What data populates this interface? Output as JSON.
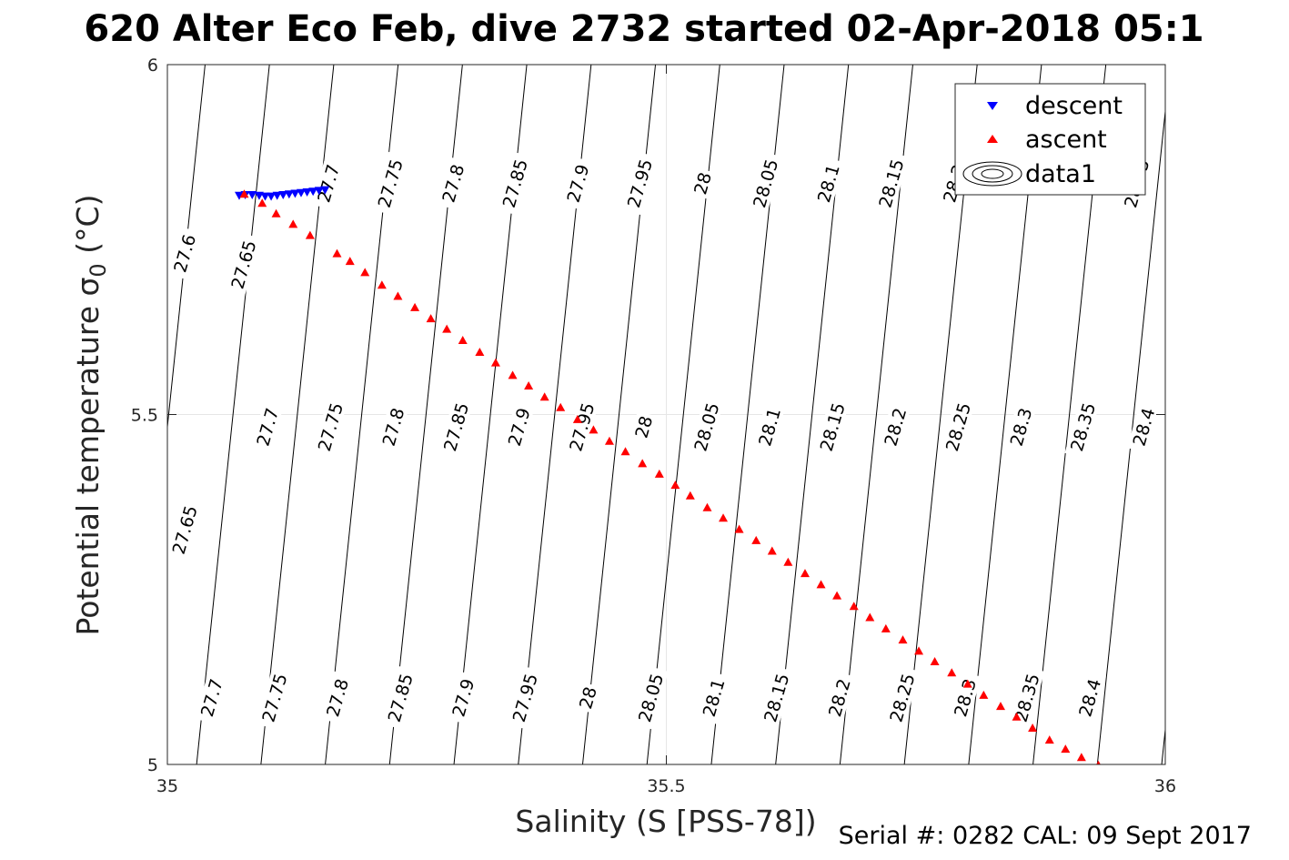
{
  "chart_data": {
    "type": "scatter",
    "title": "620 Alter Eco Feb, dive 2732 started 02-Apr-2018 05:1",
    "xlabel": "Salinity (S [PSS-78])",
    "ylabel": "Potential temperature σ",
    "ylabel_sub": "0",
    "ylabel_unit": " (°C)",
    "xlim": [
      35,
      36
    ],
    "ylim": [
      5,
      6
    ],
    "x_ticks": [
      {
        "value": 35,
        "label": "35"
      },
      {
        "value": 35.5,
        "label": "35.5"
      },
      {
        "value": 36,
        "label": "36"
      }
    ],
    "y_ticks": [
      {
        "value": 5,
        "label": "5"
      },
      {
        "value": 5.5,
        "label": "5.5"
      },
      {
        "value": 6,
        "label": "6"
      }
    ],
    "grid": true,
    "legend_position": "top-right",
    "colors": {
      "descent": "#0000ff",
      "ascent": "#ff0000",
      "contour": "#000000",
      "grid": "#e6e6e6"
    },
    "series": [
      {
        "name": "descent",
        "marker": "triangle-down",
        "color": "#0000ff",
        "points": [
          [
            35.072,
            5.813
          ],
          [
            35.078,
            5.814
          ],
          [
            35.085,
            5.814
          ],
          [
            35.092,
            5.813
          ],
          [
            35.098,
            5.812
          ],
          [
            35.104,
            5.812
          ],
          [
            35.11,
            5.813
          ],
          [
            35.116,
            5.814
          ],
          [
            35.122,
            5.815
          ],
          [
            35.128,
            5.816
          ],
          [
            35.134,
            5.817
          ],
          [
            35.14,
            5.818
          ],
          [
            35.146,
            5.819
          ],
          [
            35.152,
            5.82
          ],
          [
            35.158,
            5.821
          ]
        ]
      },
      {
        "name": "ascent",
        "marker": "triangle-up",
        "color": "#ff0000",
        "points": [
          [
            35.077,
            5.815
          ],
          [
            35.095,
            5.802
          ],
          [
            35.109,
            5.787
          ],
          [
            35.126,
            5.772
          ],
          [
            35.143,
            5.756
          ],
          [
            35.17,
            5.73
          ],
          [
            35.183,
            5.719
          ],
          [
            35.198,
            5.703
          ],
          [
            35.215,
            5.685
          ],
          [
            35.231,
            5.669
          ],
          [
            35.248,
            5.653
          ],
          [
            35.264,
            5.637
          ],
          [
            35.28,
            5.622
          ],
          [
            35.296,
            5.606
          ],
          [
            35.313,
            5.589
          ],
          [
            35.329,
            5.574
          ],
          [
            35.346,
            5.556
          ],
          [
            35.362,
            5.541
          ],
          [
            35.378,
            5.525
          ],
          [
            35.394,
            5.51
          ],
          [
            35.411,
            5.493
          ],
          [
            35.427,
            5.478
          ],
          [
            35.443,
            5.462
          ],
          [
            35.459,
            5.447
          ],
          [
            35.476,
            5.43
          ],
          [
            35.493,
            5.415
          ],
          [
            35.509,
            5.399
          ],
          [
            35.524,
            5.384
          ],
          [
            35.541,
            5.367
          ],
          [
            35.557,
            5.352
          ],
          [
            35.573,
            5.336
          ],
          [
            35.59,
            5.32
          ],
          [
            35.606,
            5.305
          ],
          [
            35.622,
            5.289
          ],
          [
            35.639,
            5.273
          ],
          [
            35.655,
            5.257
          ],
          [
            35.671,
            5.241
          ],
          [
            35.688,
            5.226
          ],
          [
            35.704,
            5.21
          ],
          [
            35.72,
            5.194
          ],
          [
            35.737,
            5.178
          ],
          [
            35.753,
            5.162
          ],
          [
            35.769,
            5.147
          ],
          [
            35.786,
            5.131
          ],
          [
            35.802,
            5.115
          ],
          [
            35.818,
            5.099
          ],
          [
            35.835,
            5.083
          ],
          [
            35.851,
            5.068
          ],
          [
            35.867,
            5.052
          ],
          [
            35.884,
            5.035
          ],
          [
            35.9,
            5.022
          ],
          [
            35.916,
            5.01
          ],
          [
            35.933,
            4.999
          ]
        ]
      },
      {
        "name": "data1",
        "marker": "contour",
        "color": "#000000",
        "isopycnals": [
          "27.6",
          "27.65",
          "27.7",
          "27.75",
          "27.8",
          "27.85",
          "27.9",
          "27.95",
          "28",
          "28.05",
          "28.1",
          "28.15",
          "28.2",
          "28.25",
          "28.3",
          "28.35",
          "28.4"
        ]
      }
    ],
    "contour_labels": [
      {
        "text": "27.6",
        "x": 35.018,
        "y": 5.73
      },
      {
        "text": "27.65",
        "x": 35.077,
        "y": 5.714
      },
      {
        "text": "27.7",
        "x": 35.162,
        "y": 5.83
      },
      {
        "text": "27.75",
        "x": 35.224,
        "y": 5.83
      },
      {
        "text": "27.8",
        "x": 35.287,
        "y": 5.83
      },
      {
        "text": "27.85",
        "x": 35.349,
        "y": 5.83
      },
      {
        "text": "27.9",
        "x": 35.412,
        "y": 5.83
      },
      {
        "text": "27.95",
        "x": 35.474,
        "y": 5.83
      },
      {
        "text": "28",
        "x": 35.537,
        "y": 5.83
      },
      {
        "text": "28.05",
        "x": 35.6,
        "y": 5.83
      },
      {
        "text": "28.1",
        "x": 35.663,
        "y": 5.83
      },
      {
        "text": "28.15",
        "x": 35.726,
        "y": 5.83
      },
      {
        "text": "28.2",
        "x": 35.789,
        "y": 5.83
      },
      {
        "text": "28.35",
        "x": 35.972,
        "y": 5.83
      },
      {
        "text": "27.7",
        "x": 35.101,
        "y": 5.482
      },
      {
        "text": "27.75",
        "x": 35.164,
        "y": 5.482
      },
      {
        "text": "27.8",
        "x": 35.227,
        "y": 5.482
      },
      {
        "text": "27.85",
        "x": 35.29,
        "y": 5.482
      },
      {
        "text": "27.9",
        "x": 35.353,
        "y": 5.482
      },
      {
        "text": "27.95",
        "x": 35.416,
        "y": 5.482
      },
      {
        "text": "28",
        "x": 35.478,
        "y": 5.482
      },
      {
        "text": "28.05",
        "x": 35.541,
        "y": 5.482
      },
      {
        "text": "28.1",
        "x": 35.604,
        "y": 5.482
      },
      {
        "text": "28.15",
        "x": 35.667,
        "y": 5.482
      },
      {
        "text": "28.2",
        "x": 35.73,
        "y": 5.482
      },
      {
        "text": "28.25",
        "x": 35.793,
        "y": 5.482
      },
      {
        "text": "28.3",
        "x": 35.856,
        "y": 5.482
      },
      {
        "text": "28.35",
        "x": 35.918,
        "y": 5.482
      },
      {
        "text": "28.4",
        "x": 35.979,
        "y": 5.482
      },
      {
        "text": "27.65",
        "x": 35.018,
        "y": 5.335
      },
      {
        "text": "27.7",
        "x": 35.045,
        "y": 5.095
      },
      {
        "text": "27.75",
        "x": 35.108,
        "y": 5.095
      },
      {
        "text": "27.8",
        "x": 35.171,
        "y": 5.095
      },
      {
        "text": "27.85",
        "x": 35.234,
        "y": 5.095
      },
      {
        "text": "27.9",
        "x": 35.297,
        "y": 5.095
      },
      {
        "text": "27.95",
        "x": 35.359,
        "y": 5.095
      },
      {
        "text": "28",
        "x": 35.422,
        "y": 5.095
      },
      {
        "text": "28.05",
        "x": 35.485,
        "y": 5.095
      },
      {
        "text": "28.1",
        "x": 35.548,
        "y": 5.095
      },
      {
        "text": "28.15",
        "x": 35.611,
        "y": 5.095
      },
      {
        "text": "28.2",
        "x": 35.674,
        "y": 5.095
      },
      {
        "text": "28.25",
        "x": 35.737,
        "y": 5.095
      },
      {
        "text": "28.3",
        "x": 35.8,
        "y": 5.095
      },
      {
        "text": "28.35",
        "x": 35.862,
        "y": 5.095
      },
      {
        "text": "28.4",
        "x": 35.925,
        "y": 5.095
      }
    ],
    "legend": [
      "descent",
      "ascent",
      "data1"
    ]
  },
  "footer": {
    "serial": "Serial #: 0282  CAL: 09 Sept 2017"
  }
}
